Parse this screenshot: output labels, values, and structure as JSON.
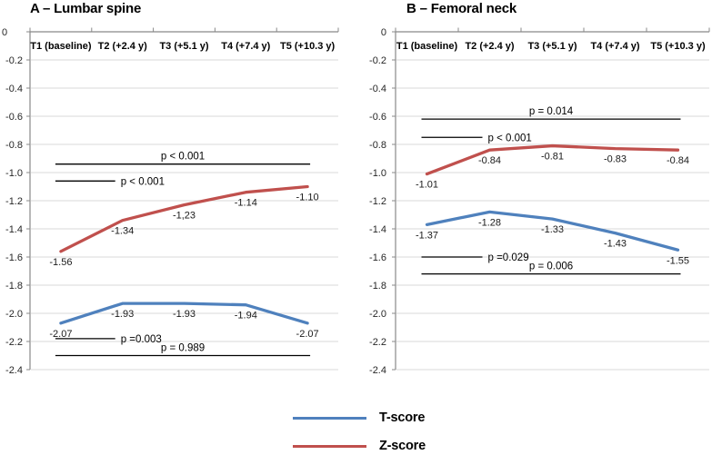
{
  "figure": {
    "background": "#ffffff"
  },
  "colors": {
    "t_score": "#4F81BD",
    "z_score": "#C0504D",
    "gridline": "#D9D9D9",
    "axis": "#898989",
    "p_line": "#000000",
    "tick_text": "#262626",
    "data_label_text": "#1a1a1a",
    "category_text": "#000000"
  },
  "legend": {
    "position": "bottom-center",
    "items": [
      {
        "label": "T-score",
        "color": "#4F81BD"
      },
      {
        "label": "Z-score",
        "color": "#C0504D"
      }
    ]
  },
  "chart_data": [
    {
      "type": "line",
      "title": "A – Lumbar spine",
      "xlabel": "",
      "ylabel": "",
      "ylim": [
        0,
        -2.4
      ],
      "ytick_step": 0.2,
      "ytick_labels": [
        "0",
        "-0.2",
        "-0.4",
        "-0.6",
        "-0.8",
        "-1.0",
        "-1.2",
        "-1.4",
        "-1.6",
        "-1.8",
        "-2.0",
        "-2.2",
        "-2.4"
      ],
      "grid": true,
      "categories": [
        "T1 (baseline)",
        "T2 (+2.4 y)",
        "T3 (+5.1 y)",
        "T4 (+7.4 y)",
        "T5 (+10.3 y)"
      ],
      "series": [
        {
          "name": "T-score",
          "color": "#4F81BD",
          "values": [
            -2.07,
            -1.93,
            -1.93,
            -1.94,
            -2.07
          ],
          "point_labels": [
            "-2.07",
            "-1.93",
            "-1.93",
            "-1.94",
            "-2.07"
          ]
        },
        {
          "name": "Z-score",
          "color": "#C0504D",
          "values": [
            -1.56,
            -1.34,
            -1.23,
            -1.14,
            -1.1
          ],
          "point_labels": [
            "-1.56",
            "-1.34",
            "-1,23",
            "-1.14",
            "-1.10"
          ]
        }
      ],
      "p_value_annotations": [
        {
          "label": "p < 0.001",
          "y": -0.94,
          "span": "full",
          "label_position": "above-center"
        },
        {
          "label": "p < 0.001",
          "y": -1.06,
          "span": "first-interval",
          "label_position": "right"
        },
        {
          "label": "p =0.003",
          "y": -2.18,
          "span": "first-interval",
          "label_position": "right"
        },
        {
          "label": "p = 0.989",
          "y": -2.3,
          "span": "full",
          "label_position": "above-center"
        }
      ]
    },
    {
      "type": "line",
      "title": "B – Femoral neck",
      "xlabel": "",
      "ylabel": "",
      "ylim": [
        0,
        -2.4
      ],
      "ytick_step": 0.2,
      "ytick_labels": [
        "0",
        "-0.2",
        "-0.4",
        "-0.6",
        "-0.8",
        "-1.0",
        "-1.2",
        "-1.4",
        "-1.6",
        "-1.8",
        "-2.0",
        "-2.2",
        "-2.4"
      ],
      "grid": true,
      "categories": [
        "T1 (baseline)",
        "T2 (+2.4 y)",
        "T3 (+5.1 y)",
        "T4 (+7.4 y)",
        "T5 (+10.3 y)"
      ],
      "series": [
        {
          "name": "T-score",
          "color": "#4F81BD",
          "values": [
            -1.37,
            -1.28,
            -1.33,
            -1.43,
            -1.55
          ],
          "point_labels": [
            "-1.37",
            "-1.28",
            "-1.33",
            "-1.43",
            "-1.55"
          ]
        },
        {
          "name": "Z-score",
          "color": "#C0504D",
          "values": [
            -1.01,
            -0.84,
            -0.81,
            -0.83,
            -0.84
          ],
          "point_labels": [
            "-1.01",
            "-0.84",
            "-0.81",
            "-0.83",
            "-0.84"
          ]
        }
      ],
      "p_value_annotations": [
        {
          "label": "p = 0.014",
          "y": -0.62,
          "span": "full",
          "label_position": "above-center"
        },
        {
          "label": "p < 0.001",
          "y": -0.75,
          "span": "first-interval",
          "label_position": "right"
        },
        {
          "label": "p =0.029",
          "y": -1.6,
          "span": "first-interval",
          "label_position": "right"
        },
        {
          "label": "p = 0.006",
          "y": -1.72,
          "span": "full",
          "label_position": "above-center"
        }
      ]
    }
  ]
}
